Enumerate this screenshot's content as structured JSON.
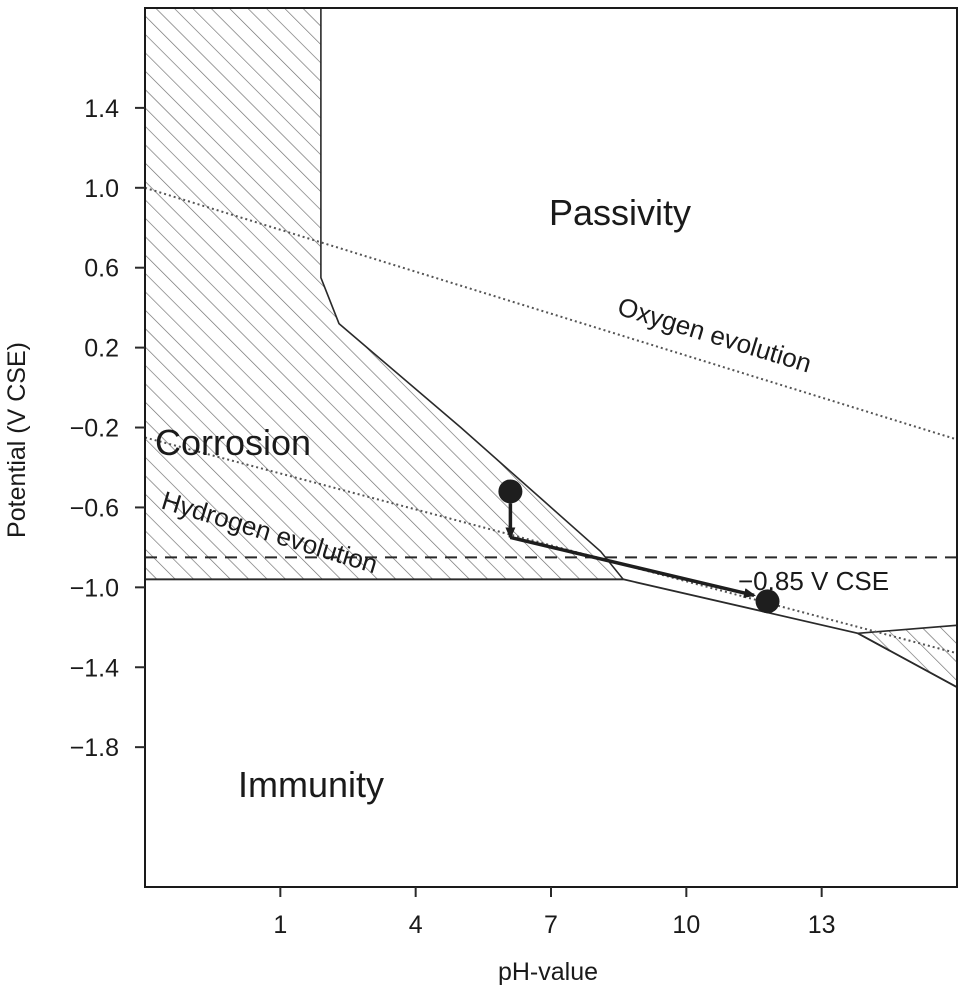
{
  "chart_data": {
    "type": "diagram",
    "title": "",
    "xlabel": "pH-value",
    "ylabel": "Potential (V CSE)",
    "xlim": [
      -2,
      16
    ],
    "ylim": [
      -2.5,
      1.9
    ],
    "x_ticks": [
      {
        "value": 1,
        "label": "1"
      },
      {
        "value": 4,
        "label": "4"
      },
      {
        "value": 7,
        "label": "7"
      },
      {
        "value": 10,
        "label": "10"
      },
      {
        "value": 13,
        "label": "13"
      }
    ],
    "y_ticks": [
      {
        "value": 1.4,
        "label": "1.4"
      },
      {
        "value": 1.0,
        "label": "1.0"
      },
      {
        "value": 0.6,
        "label": "0.6"
      },
      {
        "value": 0.2,
        "label": "0.2"
      },
      {
        "value": -0.2,
        "label": "−0.2"
      },
      {
        "value": -0.6,
        "label": "−0.6"
      },
      {
        "value": -1.0,
        "label": "−1.0"
      },
      {
        "value": -1.4,
        "label": "−1.4"
      },
      {
        "value": -1.8,
        "label": "−1.8"
      }
    ],
    "regions": [
      {
        "name": "Corrosion",
        "hatched": true,
        "polygon": [
          [
            -2,
            1.9
          ],
          [
            1.9,
            1.9
          ],
          [
            1.9,
            0.55
          ],
          [
            2.3,
            0.32
          ],
          [
            5.0,
            -0.2
          ],
          [
            6.8,
            -0.56
          ],
          [
            8.1,
            -0.82
          ],
          [
            8.6,
            -0.96
          ],
          [
            -2,
            -0.96
          ]
        ]
      },
      {
        "name": "Corrosion (alkaline)",
        "hatched": true,
        "polygon": [
          [
            13.8,
            -1.23
          ],
          [
            16,
            -1.19
          ],
          [
            16,
            -1.5
          ]
        ]
      },
      {
        "name": "Passivity",
        "hatched": false
      },
      {
        "name": "Immunity",
        "hatched": false
      }
    ],
    "boundary_lines": [
      {
        "name": "immunity-boundary",
        "points": [
          [
            -2,
            -0.96
          ],
          [
            8.6,
            -0.96
          ]
        ]
      },
      {
        "name": "passivity-immunity-boundary",
        "points": [
          [
            8.6,
            -0.96
          ],
          [
            13.8,
            -1.23
          ],
          [
            16,
            -1.5
          ]
        ]
      }
    ],
    "reference_lines": [
      {
        "label": "Oxygen evolution",
        "style": "dotted",
        "points": [
          [
            -2,
            1.0
          ],
          [
            16,
            -0.26
          ]
        ]
      },
      {
        "label": "Hydrogen evolution",
        "style": "dotted",
        "points": [
          [
            -2,
            -0.25
          ],
          [
            16,
            -1.33
          ]
        ]
      },
      {
        "label": "−0.85 V CSE",
        "style": "dashed",
        "value": -0.85
      }
    ],
    "markers": [
      {
        "name": "initial-state",
        "x": 6.1,
        "y": -0.52
      },
      {
        "name": "protected-state",
        "x": 11.8,
        "y": -1.07
      }
    ],
    "arrows": [
      {
        "name": "potential-shift",
        "from": [
          6.1,
          -0.58
        ],
        "to": [
          6.1,
          -0.75
        ]
      },
      {
        "name": "ph-shift",
        "from": [
          6.1,
          -0.75
        ],
        "to": [
          11.5,
          -1.04
        ]
      }
    ]
  },
  "labels": {
    "passivity": "Passivity",
    "corrosion": "Corrosion",
    "immunity": "Immunity",
    "oxygen": "Oxygen evolution",
    "hydrogen": "Hydrogen evolution",
    "cse": "−0.85 V CSE"
  },
  "colors": {
    "hatch": "#6b6b6b",
    "line": "#2a2a2a",
    "marker": "#1e1e1e"
  }
}
